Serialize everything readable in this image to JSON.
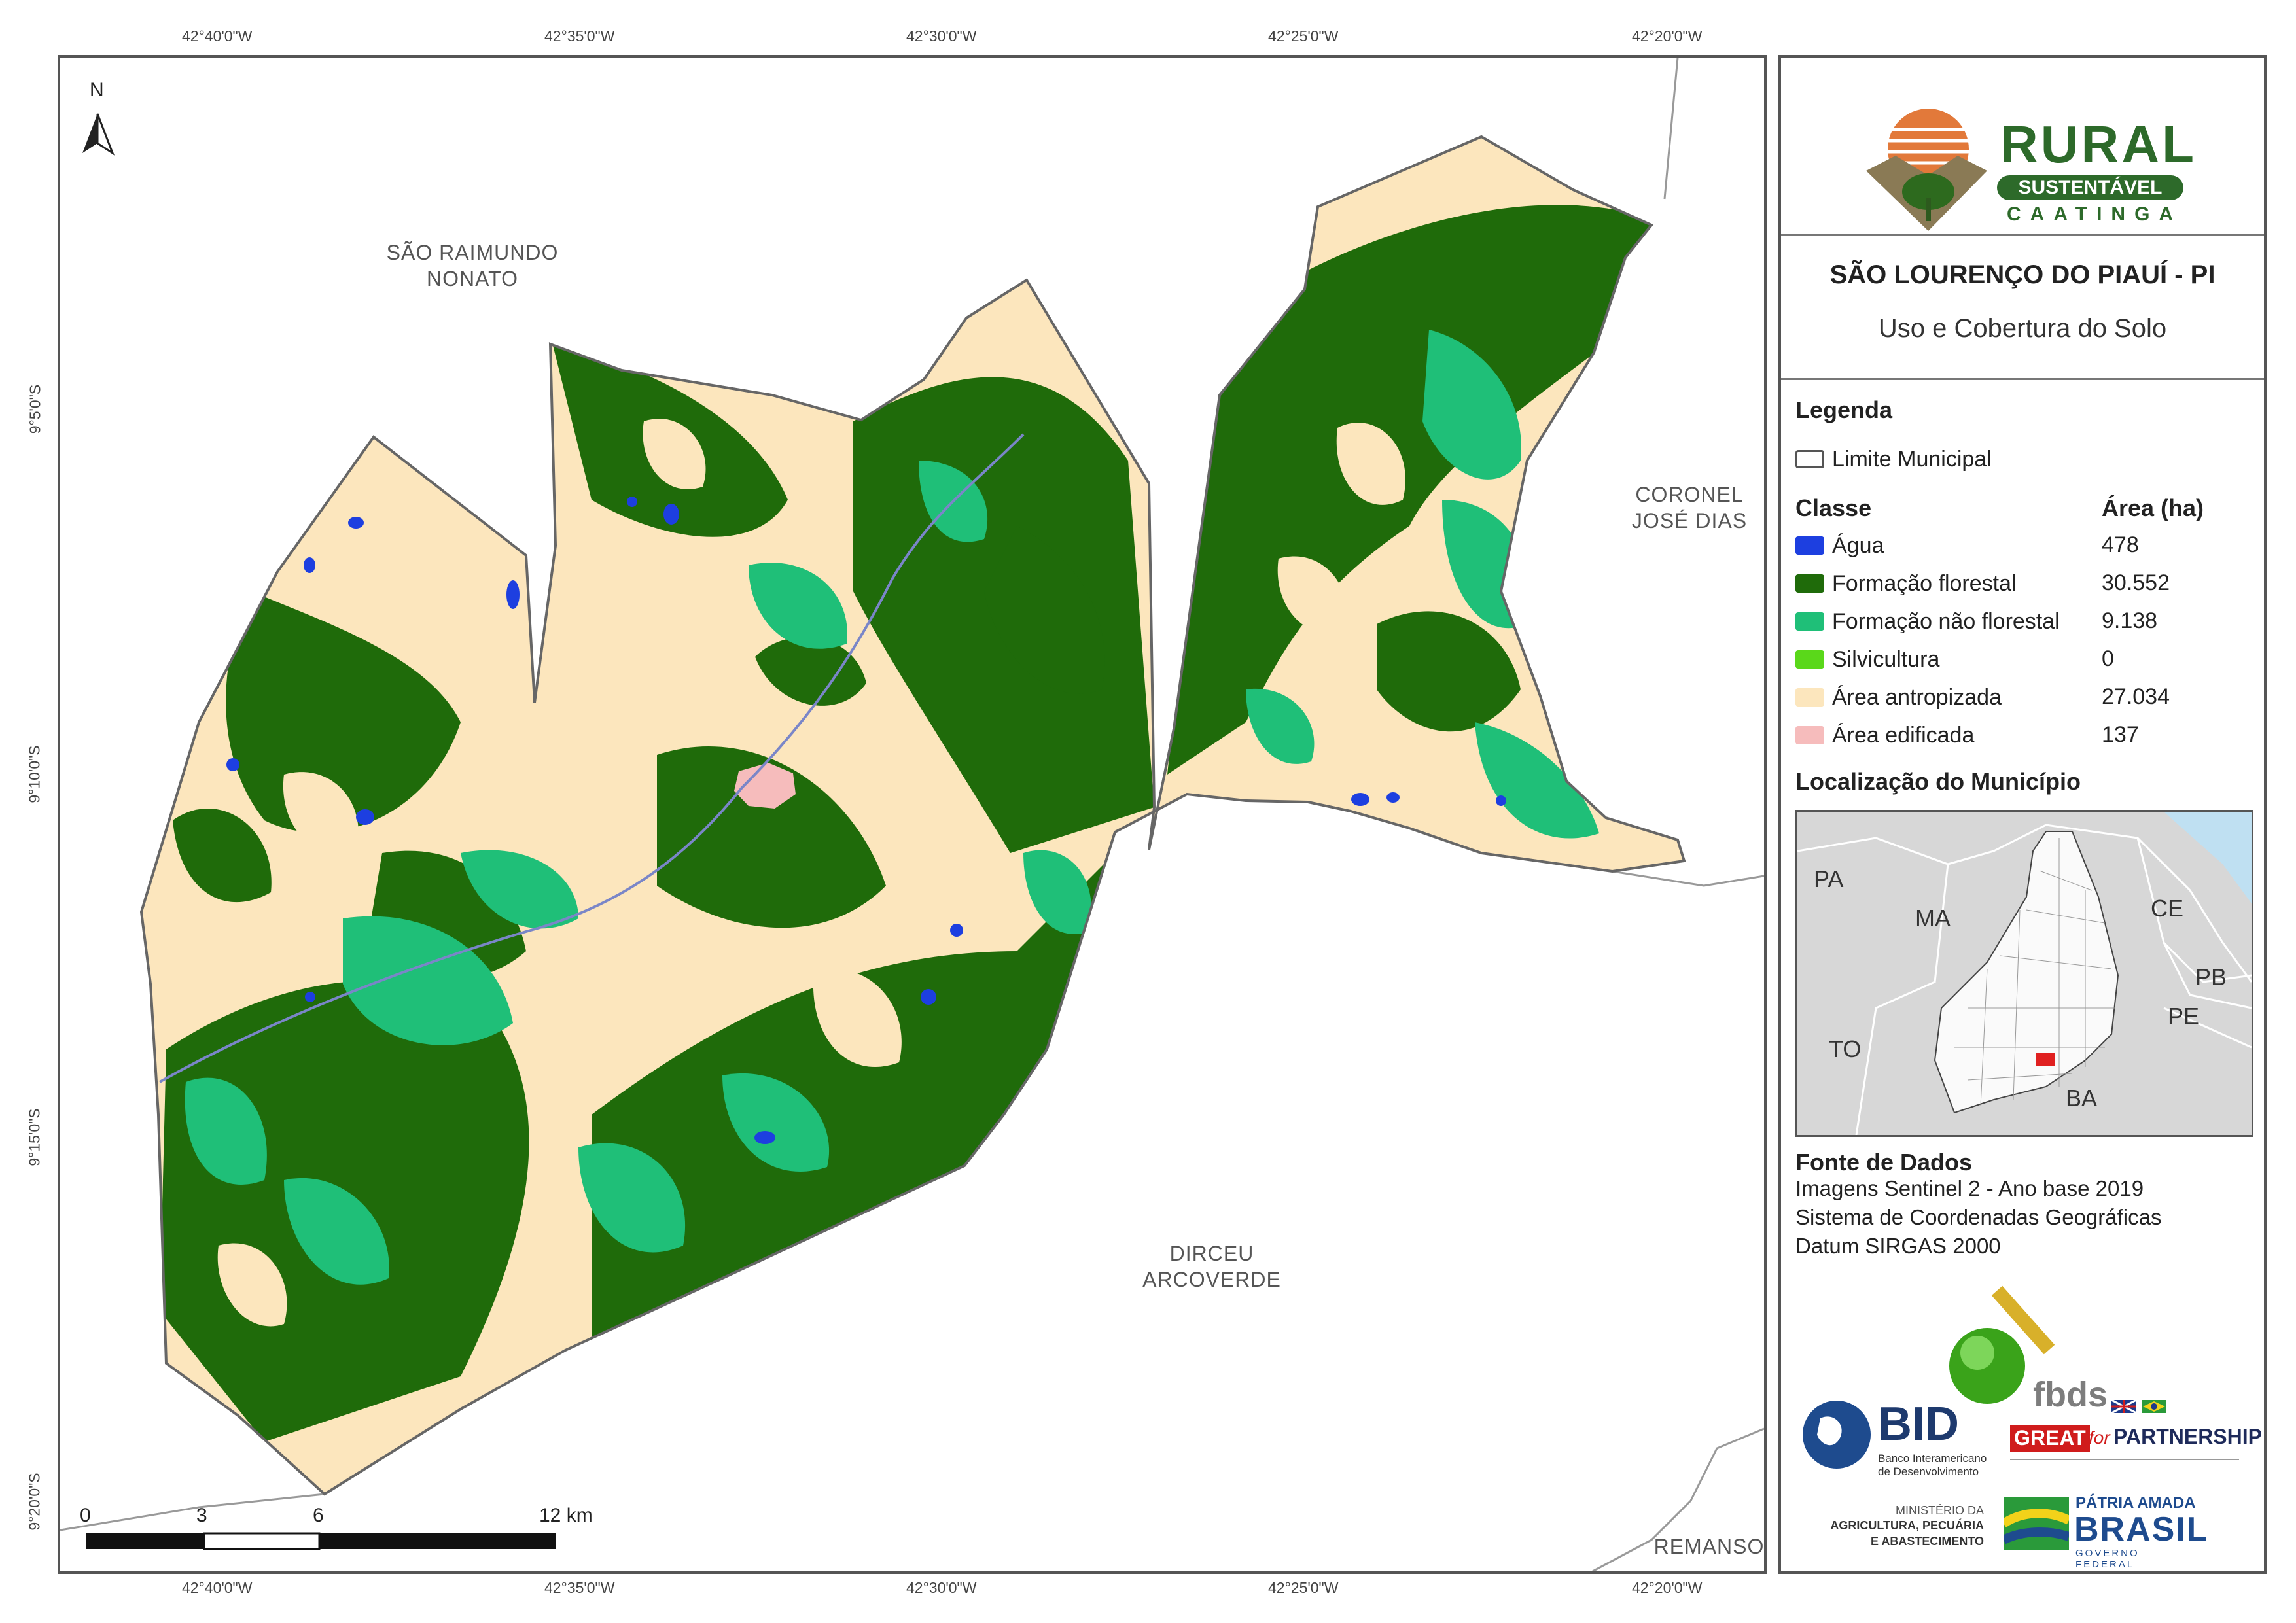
{
  "map": {
    "coords_top": [
      "42°40'0\"W",
      "42°35'0\"W",
      "42°30'0\"W",
      "42°25'0\"W",
      "42°20'0\"W"
    ],
    "coords_bottom": [
      "42°40'0\"W",
      "42°35'0\"W",
      "42°30'0\"W",
      "42°25'0\"W",
      "42°20'0\"W"
    ],
    "coords_left": [
      "9°5'0\"S",
      "9°10'0\"S",
      "9°15'0\"S",
      "9°20'0\"S"
    ],
    "north_label": "N",
    "neighbors": {
      "sao_raimundo_1": "SÃO RAIMUNDO",
      "sao_raimundo_2": "NONATO",
      "coronel_1": "CORONEL",
      "coronel_2": "JOSÉ DIAS",
      "dirceu_1": "DIRCEU",
      "dirceu_2": "ARCOVERDE",
      "remanso": "REMANSO"
    },
    "scale_labels": [
      "0",
      "3",
      "6",
      "12 km"
    ]
  },
  "panel": {
    "logo": {
      "word1": "RURAL",
      "word2": "SUSTENTÁVEL",
      "word3": "CAATINGA"
    },
    "title": "SÃO LOURENÇO DO PIAUÍ - PI",
    "subtitle": "Uso e Cobertura do Solo",
    "legend": {
      "heading": "Legenda",
      "boundary_label": "Limite Municipal",
      "class_header": "Classe",
      "area_header": "Área (ha)",
      "classes": [
        {
          "label": "Água",
          "area": "478",
          "color": "#1d3fe0"
        },
        {
          "label": "Formação florestal",
          "area": "30.552",
          "color": "#1f6b0a"
        },
        {
          "label": "Formação não florestal",
          "area": "9.138",
          "color": "#1fbf78"
        },
        {
          "label": "Silvicultura",
          "area": "0",
          "color": "#5ad81a"
        },
        {
          "label": "Área antropizada",
          "area": "27.034",
          "color": "#fce6bd"
        },
        {
          "label": "Área edificada",
          "area": "137",
          "color": "#f6bcbc"
        }
      ]
    },
    "location": {
      "heading": "Localização do Município",
      "states": [
        "PA",
        "MA",
        "CE",
        "PB",
        "PE",
        "TO",
        "BA"
      ]
    },
    "sources": {
      "heading": "Fonte de Dados",
      "lines": [
        "Imagens Sentinel 2 - Ano base 2019",
        "Sistema de Coordenadas Geográficas",
        "Datum SIRGAS 2000"
      ]
    },
    "logos": {
      "fbds": "fbds",
      "bid": "BID",
      "bid_sub1": "Banco Interamericano",
      "bid_sub2": "de Desenvolvimento",
      "great": "GREAT",
      "great_for": "for",
      "great_partner": "PARTNERSHIP",
      "ministry1": "MINISTÉRIO DA",
      "ministry2": "AGRICULTURA, PECUÁRIA",
      "ministry3": "E ABASTECIMENTO",
      "patria": "PÁTRIA AMADA",
      "brasil": "BRASIL",
      "gov": "GOVERNO FEDERAL"
    }
  }
}
